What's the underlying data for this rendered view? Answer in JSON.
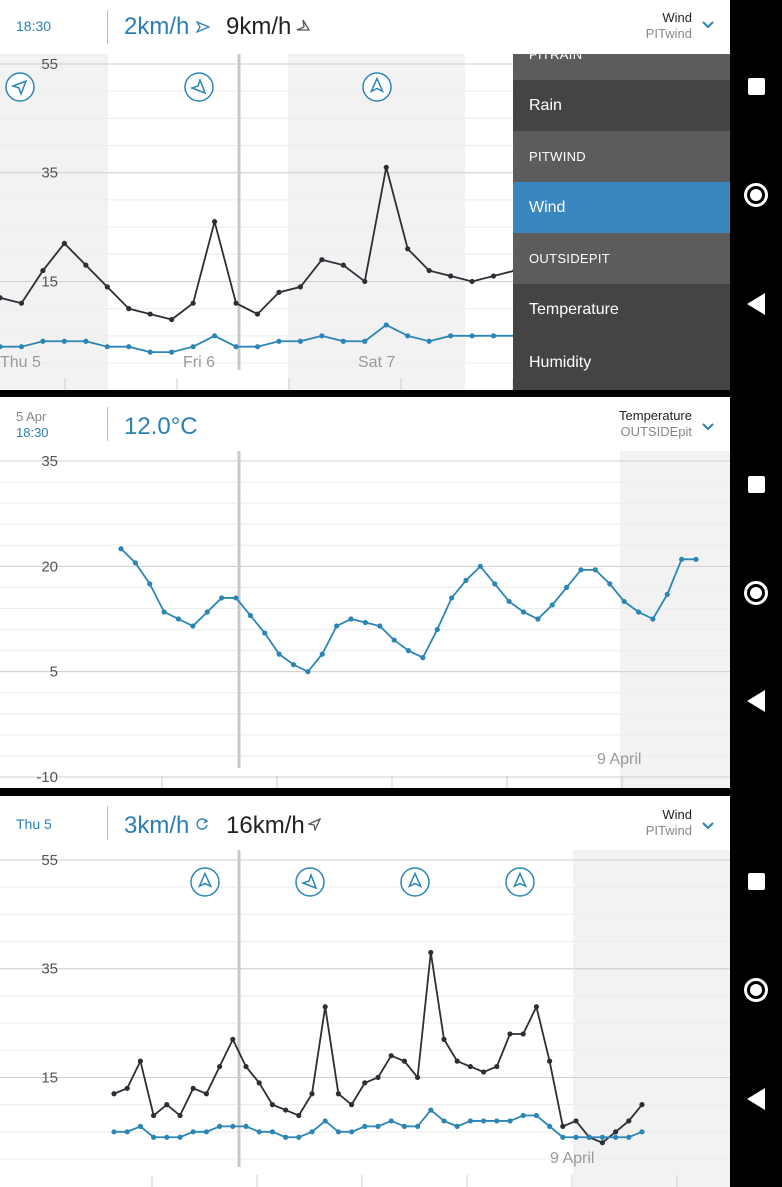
{
  "panel1": {
    "time": "18:30",
    "speed": "2km/h",
    "gust": "9km/h",
    "sensor_type": "Wind",
    "sensor_name": "PITwind",
    "chevron": "chevron-down-icon",
    "menu": {
      "items": [
        {
          "label": "PITRAIN",
          "kind": "section"
        },
        {
          "label": "Rain",
          "kind": "item"
        },
        {
          "label": "PITWIND",
          "kind": "section"
        },
        {
          "label": "Wind",
          "kind": "selected"
        },
        {
          "label": "OUTSIDEPIT",
          "kind": "section"
        },
        {
          "label": "Temperature",
          "kind": "item"
        },
        {
          "label": "Humidity",
          "kind": "item"
        }
      ]
    },
    "chart_data": {
      "type": "line",
      "y_ticks": [
        55,
        35,
        15
      ],
      "ylim": [
        0,
        55
      ],
      "day_labels": [
        "Thu 5",
        "Fri 6",
        "Sat 7"
      ],
      "series": [
        {
          "color": "#2b2f36",
          "values": [
            12,
            11,
            17,
            22,
            18,
            14,
            10,
            9,
            8,
            11,
            26,
            11,
            9,
            13,
            14,
            19,
            18,
            15,
            36,
            21,
            17,
            16,
            15,
            16,
            17
          ]
        },
        {
          "color": "#2b86b5",
          "values": [
            3,
            3,
            4,
            4,
            4,
            3,
            3,
            2,
            2,
            3,
            5,
            3,
            3,
            4,
            4,
            5,
            4,
            4,
            7,
            5,
            4,
            5,
            5,
            5,
            5
          ]
        }
      ]
    }
  },
  "panel2": {
    "date": "5 Apr",
    "time": "18:30",
    "value": "12.0°C",
    "sensor_type": "Temperature",
    "sensor_name": "OUTSIDEpit",
    "chevron": "chevron-down-icon",
    "chart_data": {
      "type": "line",
      "y_ticks": [
        35,
        20,
        5,
        -10
      ],
      "ylim": [
        -10,
        35
      ],
      "day_labels": [
        "9 April"
      ],
      "series": [
        {
          "color": "#2b86b5",
          "values": [
            22.5,
            20.5,
            17.5,
            13.5,
            12.5,
            11.5,
            13.5,
            15.5,
            15.5,
            13.0,
            10.5,
            7.5,
            6.0,
            5.0,
            7.5,
            11.5,
            12.5,
            12.0,
            11.5,
            9.5,
            8.0,
            7.0,
            11.0,
            15.5,
            18.0,
            20.0,
            17.5,
            15.0,
            13.5,
            12.5,
            14.5,
            17.0,
            19.5,
            19.5,
            17.5,
            15.0,
            13.5,
            12.5,
            16.0,
            21.0,
            21.0
          ]
        }
      ]
    }
  },
  "panel3": {
    "date": "Thu 5",
    "speed": "3km/h",
    "gust": "16km/h",
    "sensor_type": "Wind",
    "sensor_name": "PITwind",
    "chevron": "chevron-down-icon",
    "chart_data": {
      "type": "line",
      "y_ticks": [
        55,
        35,
        15
      ],
      "ylim": [
        0,
        55
      ],
      "day_labels": [
        "9 April"
      ],
      "series": [
        {
          "color": "#2b2f36",
          "values": [
            12,
            13,
            18,
            8,
            10,
            8,
            13,
            12,
            17,
            22,
            17,
            14,
            10,
            9,
            8,
            12,
            28,
            12,
            10,
            14,
            15,
            19,
            18,
            15,
            38,
            22,
            18,
            17,
            16,
            17,
            23,
            23,
            28,
            18,
            6,
            7,
            4,
            3,
            5,
            7,
            10
          ]
        },
        {
          "color": "#2b86b5",
          "values": [
            5,
            5,
            6,
            4,
            4,
            4,
            5,
            5,
            6,
            6,
            6,
            5,
            5,
            4,
            4,
            5,
            7,
            5,
            5,
            6,
            6,
            7,
            6,
            6,
            9,
            7,
            6,
            7,
            7,
            7,
            7,
            8,
            8,
            6,
            4,
            4,
            4,
            4,
            4,
            4,
            5
          ]
        }
      ]
    }
  }
}
